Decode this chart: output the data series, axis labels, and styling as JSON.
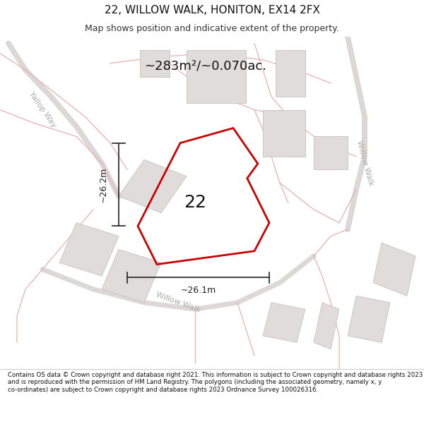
{
  "title": "22, WILLOW WALK, HONITON, EX14 2FX",
  "subtitle": "Map shows position and indicative extent of the property.",
  "area_text": "~283m²/~0.070ac.",
  "label_22": "22",
  "dim_vertical": "~26.2m",
  "dim_horizontal": "~26.1m",
  "footer": "Contains OS data © Crown copyright and database right 2021. This information is subject to Crown copyright and database rights 2023 and is reproduced with the permission of HM Land Registry. The polygons (including the associated geometry, namely x, y co-ordinates) are subject to Crown copyright and database rights 2023 Ordnance Survey 100026316.",
  "map_bg": "#faf8f8",
  "property_outline": "#cc0000",
  "building_fc": "#e0dcdc",
  "building_ec": "#c8c0c0",
  "road_line": "#e8b0b0",
  "road_fill": "#f5ecec",
  "street_color": "#aaaaaa",
  "dim_color": "#222222",
  "title_fontsize": 11,
  "subtitle_fontsize": 9,
  "area_fontsize": 13,
  "label_fontsize": 18,
  "dim_fontsize": 9,
  "street_fontsize": 8,
  "footer_fontsize": 6.2
}
